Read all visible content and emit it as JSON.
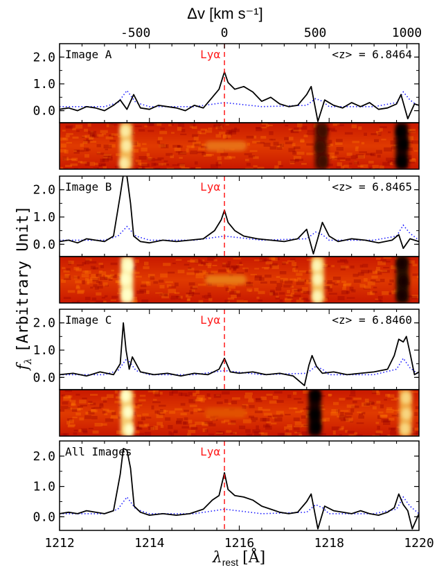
{
  "figure": {
    "ylabel": "f",
    "ylabel_sub": "λ",
    "ylabel_unit": "[Arbitrary Unit]",
    "xlabel": "λ",
    "xlabel_sub": "rest",
    "xlabel_unit": "[Å]",
    "top_axis_label": "Δv [km s⁻¹]",
    "line_label": "Lyα",
    "colors": {
      "observed": "#000000",
      "sky_model": "#1a1aff",
      "lya_marker": "#ff1a1a",
      "spectrum_2d_low": "#b00000",
      "spectrum_2d_high": "#ffffe0"
    }
  },
  "chart_data": {
    "type": "line",
    "x_unit": "Å",
    "xlim": [
      1212,
      1220
    ],
    "x_ticks": [
      1212,
      1214,
      1216,
      1218,
      1220
    ],
    "y_ticks": [
      0.0,
      1.0,
      2.0
    ],
    "top_ticks": [
      {
        "label": "-500",
        "x": 1213.69
      },
      {
        "label": "0",
        "x": 1215.67
      },
      {
        "label": "500",
        "x": 1217.69
      },
      {
        "label": "1000",
        "x": 1219.73
      }
    ],
    "lya_x": 1215.67,
    "panels": [
      {
        "label": "Image A",
        "redshift_text": "<z> = 6.8464",
        "ylim": [
          -0.45,
          2.5
        ],
        "observed": {
          "x": [
            1212.0,
            1212.2,
            1212.4,
            1212.6,
            1212.8,
            1213.0,
            1213.2,
            1213.35,
            1213.5,
            1213.65,
            1213.8,
            1214.0,
            1214.2,
            1214.4,
            1214.6,
            1214.8,
            1215.0,
            1215.2,
            1215.4,
            1215.55,
            1215.67,
            1215.75,
            1215.9,
            1216.1,
            1216.3,
            1216.5,
            1216.7,
            1216.9,
            1217.1,
            1217.3,
            1217.5,
            1217.6,
            1217.75,
            1217.9,
            1218.1,
            1218.3,
            1218.5,
            1218.7,
            1218.9,
            1219.1,
            1219.3,
            1219.5,
            1219.6,
            1219.75,
            1219.9,
            1220.0
          ],
          "y": [
            0.05,
            0.1,
            0.0,
            0.15,
            0.1,
            0.0,
            0.2,
            0.4,
            0.05,
            0.6,
            0.1,
            0.05,
            0.2,
            0.15,
            0.1,
            0.0,
            0.2,
            0.1,
            0.5,
            0.8,
            1.45,
            1.05,
            0.8,
            0.9,
            0.7,
            0.35,
            0.5,
            0.25,
            0.15,
            0.2,
            0.6,
            0.9,
            -0.4,
            0.4,
            0.2,
            0.1,
            0.3,
            0.15,
            0.3,
            0.05,
            0.1,
            0.25,
            0.6,
            -0.3,
            0.25,
            0.2
          ]
        },
        "sky": {
          "x": [
            1212.0,
            1213.0,
            1213.3,
            1213.5,
            1213.7,
            1214.0,
            1215.0,
            1215.67,
            1216.5,
            1217.5,
            1217.7,
            1217.85,
            1218.0,
            1219.0,
            1219.5,
            1219.65,
            1219.8,
            1220.0
          ],
          "y": [
            0.15,
            0.15,
            0.3,
            0.75,
            0.3,
            0.15,
            0.15,
            0.3,
            0.15,
            0.2,
            0.45,
            0.35,
            0.15,
            0.15,
            0.3,
            0.7,
            0.4,
            0.15
          ]
        }
      },
      {
        "label": "Image B",
        "redshift_text": "<z> = 6.8465",
        "ylim": [
          -0.45,
          2.5
        ],
        "observed": {
          "x": [
            1212.0,
            1212.2,
            1212.4,
            1212.6,
            1212.8,
            1213.0,
            1213.2,
            1213.35,
            1213.42,
            1213.5,
            1213.58,
            1213.65,
            1213.8,
            1214.0,
            1214.3,
            1214.6,
            1214.9,
            1215.2,
            1215.45,
            1215.6,
            1215.67,
            1215.75,
            1215.9,
            1216.1,
            1216.4,
            1216.7,
            1217.0,
            1217.3,
            1217.5,
            1217.65,
            1217.85,
            1218.0,
            1218.2,
            1218.5,
            1218.8,
            1219.1,
            1219.4,
            1219.55,
            1219.65,
            1219.8,
            1220.0
          ],
          "y": [
            0.1,
            0.15,
            0.05,
            0.2,
            0.15,
            0.1,
            0.3,
            1.8,
            2.55,
            2.5,
            1.5,
            0.3,
            0.1,
            0.05,
            0.15,
            0.1,
            0.15,
            0.2,
            0.5,
            0.9,
            1.25,
            0.8,
            0.5,
            0.3,
            0.2,
            0.15,
            0.1,
            0.2,
            0.55,
            -0.35,
            0.8,
            0.3,
            0.1,
            0.2,
            0.15,
            0.05,
            0.15,
            0.35,
            -0.15,
            0.2,
            0.1
          ]
        },
        "sky": {
          "x": [
            1212.0,
            1213.0,
            1213.3,
            1213.5,
            1213.7,
            1214.0,
            1215.0,
            1215.67,
            1216.5,
            1217.5,
            1217.7,
            1217.85,
            1218.0,
            1219.0,
            1219.5,
            1219.65,
            1219.8,
            1220.0
          ],
          "y": [
            0.15,
            0.15,
            0.3,
            0.65,
            0.3,
            0.15,
            0.15,
            0.3,
            0.15,
            0.2,
            0.45,
            0.35,
            0.15,
            0.15,
            0.3,
            0.7,
            0.4,
            0.15
          ]
        }
      },
      {
        "label": "Image C",
        "redshift_text": "<z> = 6.8460",
        "ylim": [
          -0.45,
          2.5
        ],
        "observed": {
          "x": [
            1212.0,
            1212.3,
            1212.6,
            1212.9,
            1213.2,
            1213.35,
            1213.42,
            1213.48,
            1213.55,
            1213.62,
            1213.8,
            1214.1,
            1214.4,
            1214.7,
            1215.0,
            1215.3,
            1215.55,
            1215.67,
            1215.8,
            1216.0,
            1216.3,
            1216.6,
            1216.9,
            1217.2,
            1217.45,
            1217.55,
            1217.62,
            1217.72,
            1217.85,
            1218.1,
            1218.4,
            1218.7,
            1219.0,
            1219.3,
            1219.45,
            1219.55,
            1219.65,
            1219.72,
            1219.8,
            1219.9,
            1220.0
          ],
          "y": [
            0.1,
            0.15,
            0.05,
            0.2,
            0.1,
            0.5,
            2.0,
            1.0,
            0.3,
            0.75,
            0.2,
            0.1,
            0.15,
            0.05,
            0.15,
            0.1,
            0.3,
            0.7,
            0.2,
            0.15,
            0.2,
            0.1,
            0.15,
            0.05,
            -0.3,
            0.45,
            0.8,
            0.4,
            0.15,
            0.2,
            0.1,
            0.15,
            0.2,
            0.3,
            0.8,
            1.4,
            1.3,
            1.5,
            0.9,
            0.1,
            0.2
          ]
        },
        "sky": {
          "x": [
            1212.0,
            1213.0,
            1213.3,
            1213.5,
            1213.7,
            1214.0,
            1215.0,
            1215.67,
            1216.5,
            1217.5,
            1217.7,
            1217.85,
            1218.0,
            1219.0,
            1219.5,
            1219.65,
            1219.8,
            1220.0
          ],
          "y": [
            0.1,
            0.1,
            0.25,
            0.7,
            0.25,
            0.1,
            0.1,
            0.25,
            0.1,
            0.15,
            0.4,
            0.3,
            0.1,
            0.1,
            0.3,
            0.7,
            0.35,
            0.1
          ]
        }
      },
      {
        "label": "All Images",
        "redshift_text": "",
        "ylim": [
          -0.45,
          2.5
        ],
        "observed": {
          "x": [
            1212.0,
            1212.2,
            1212.4,
            1212.6,
            1212.8,
            1213.0,
            1213.2,
            1213.35,
            1213.42,
            1213.5,
            1213.58,
            1213.66,
            1213.8,
            1214.0,
            1214.3,
            1214.6,
            1214.9,
            1215.2,
            1215.4,
            1215.55,
            1215.67,
            1215.75,
            1215.9,
            1216.1,
            1216.3,
            1216.5,
            1216.7,
            1216.9,
            1217.1,
            1217.3,
            1217.5,
            1217.6,
            1217.75,
            1217.9,
            1218.1,
            1218.3,
            1218.5,
            1218.7,
            1218.9,
            1219.1,
            1219.3,
            1219.45,
            1219.55,
            1219.65,
            1219.75,
            1219.85,
            1220.0
          ],
          "y": [
            0.1,
            0.15,
            0.1,
            0.2,
            0.15,
            0.1,
            0.2,
            1.4,
            2.25,
            2.2,
            1.6,
            0.35,
            0.15,
            0.05,
            0.1,
            0.05,
            0.1,
            0.25,
            0.55,
            0.7,
            1.45,
            0.9,
            0.7,
            0.65,
            0.55,
            0.35,
            0.25,
            0.15,
            0.1,
            0.15,
            0.5,
            0.75,
            -0.4,
            0.35,
            0.2,
            0.15,
            0.1,
            0.2,
            0.1,
            0.05,
            0.15,
            0.3,
            0.75,
            0.4,
            0.2,
            -0.4,
            0.1
          ]
        },
        "sky": {
          "x": [
            1212.0,
            1213.0,
            1213.3,
            1213.5,
            1213.7,
            1214.0,
            1215.0,
            1215.67,
            1216.5,
            1217.5,
            1217.7,
            1217.85,
            1218.0,
            1219.0,
            1219.5,
            1219.65,
            1219.8,
            1220.0
          ],
          "y": [
            0.1,
            0.1,
            0.25,
            0.65,
            0.25,
            0.1,
            0.1,
            0.25,
            0.1,
            0.15,
            0.4,
            0.3,
            0.1,
            0.1,
            0.25,
            0.65,
            0.35,
            0.1
          ]
        }
      }
    ],
    "spectra_2d": [
      {
        "bands": [
          {
            "x": 1213.48,
            "intensity": 0.65
          },
          {
            "x": 1215.7,
            "intensity": 0.3
          },
          {
            "x": 1217.82,
            "intensity": -0.6
          },
          {
            "x": 1219.62,
            "intensity": -0.9
          }
        ]
      },
      {
        "bands": [
          {
            "x": 1213.5,
            "intensity": 0.9
          },
          {
            "x": 1215.7,
            "intensity": 0.35
          },
          {
            "x": 1217.75,
            "intensity": 0.7
          },
          {
            "x": 1219.63,
            "intensity": -0.8
          }
        ]
      },
      {
        "bands": [
          {
            "x": 1213.5,
            "intensity": 0.75
          },
          {
            "x": 1215.7,
            "intensity": 0.15
          },
          {
            "x": 1217.68,
            "intensity": -0.9
          },
          {
            "x": 1219.7,
            "intensity": 0.55
          }
        ]
      }
    ]
  }
}
